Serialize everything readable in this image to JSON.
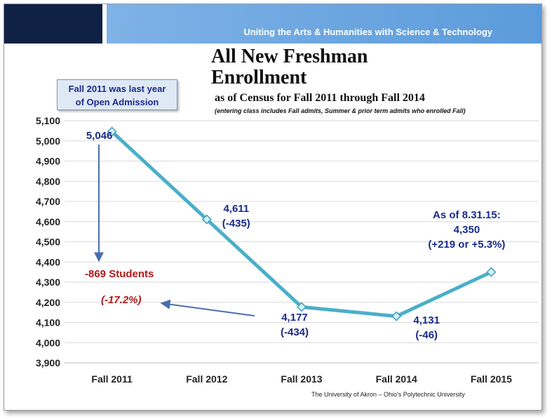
{
  "header": {
    "tagline": "Uniting the Arts & Humanities with Science & Technology"
  },
  "callout": {
    "line1": "Fall 2011 was last year",
    "line2": "of Open Admission"
  },
  "footer": "The University of Akron – Ohio's Polytechnic University",
  "chart_data": {
    "type": "line",
    "title_line1": "All New Freshman",
    "title_line2": "Enrollment",
    "subtitle": "as of Census for Fall 2011 through Fall 2014",
    "note": "(entering class includes Fall admits, Summer & prior term admits who enrolled Fall)",
    "categories": [
      "Fall 2011",
      "Fall 2012",
      "Fall 2013",
      "Fall 2014",
      "Fall 2015"
    ],
    "values": [
      5046,
      4611,
      4177,
      4131,
      4350
    ],
    "ylim": [
      3900,
      5100
    ],
    "yticks": [
      "3,900",
      "4,000",
      "4,100",
      "4,200",
      "4,300",
      "4,400",
      "4,500",
      "4,600",
      "4,700",
      "4,800",
      "4,900",
      "5,000",
      "5,100"
    ],
    "grid": true,
    "line_color": "#4aafc9",
    "label_color": "#1a2a8a",
    "accent_color": "#b01818",
    "data_labels": [
      [
        "5,046"
      ],
      [
        "4,611",
        "(-435)"
      ],
      [
        "4,177",
        "(-434)"
      ],
      [
        "4,131",
        "(-46)"
      ],
      [
        "As of 8.31.15:",
        "4,350",
        "(+219 or +5.3%)"
      ]
    ],
    "annotations": {
      "drop": "-869 Students",
      "drop_pct": "(-17.2%)"
    }
  }
}
